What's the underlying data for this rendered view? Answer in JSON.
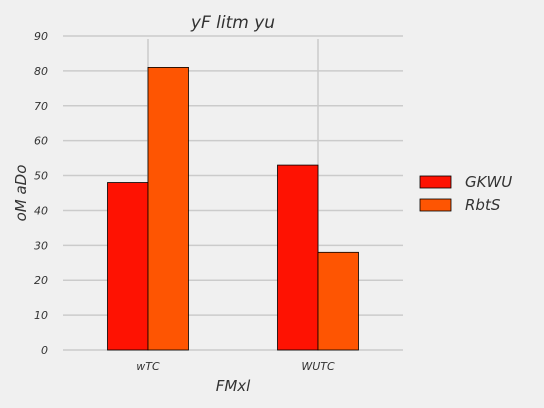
{
  "chart_data": {
    "type": "bar",
    "title": "yF litm yu",
    "xlabel": "FMxl",
    "ylabel": "oM aDo",
    "categories": [
      "wTC",
      "WUTC"
    ],
    "series": [
      {
        "name": "GKWU",
        "values": [
          48,
          53
        ],
        "color": "#fe1202"
      },
      {
        "name": "RbtS",
        "values": [
          81,
          28
        ],
        "color": "#fe5502"
      }
    ],
    "ylim": [
      0,
      90
    ],
    "yticks": [
      0,
      10,
      20,
      30,
      40,
      50,
      60,
      70,
      80,
      90
    ],
    "grid": true,
    "legend_position": "right"
  }
}
